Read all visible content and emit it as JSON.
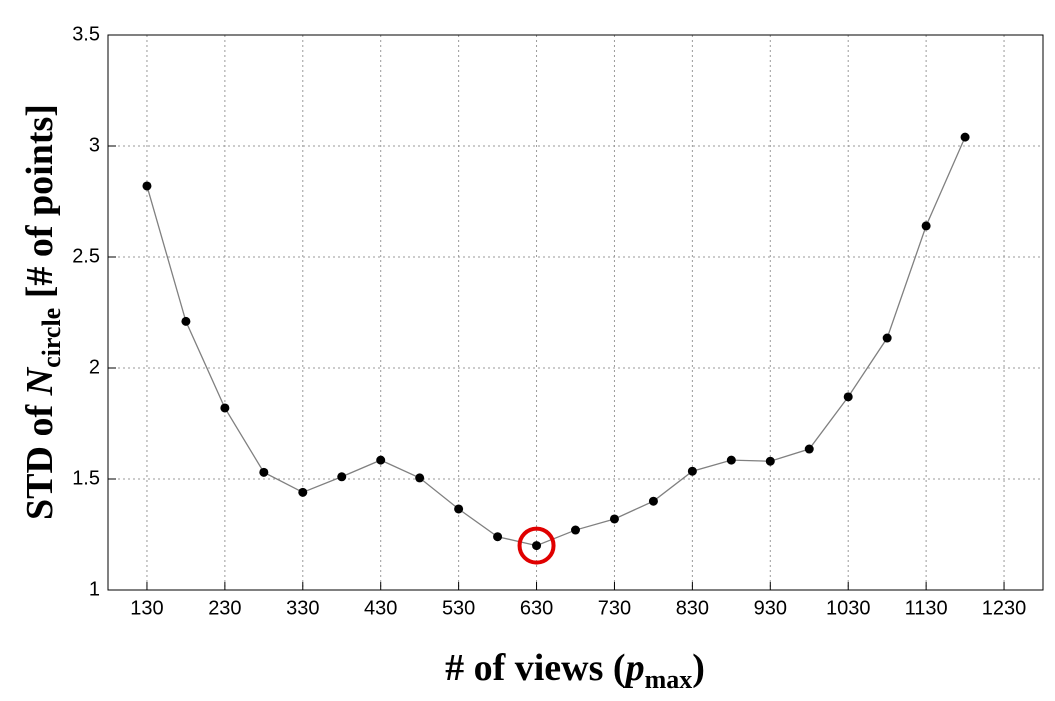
{
  "chart_data": {
    "type": "line",
    "x_label": {
      "text": "# of views (",
      "var": "p",
      "sub": "max",
      "close": ")"
    },
    "y_label": {
      "text": "STD of ",
      "var": "N",
      "sub": "circle",
      "close": " [# of points]"
    },
    "x": [
      130,
      180,
      230,
      280,
      330,
      380,
      430,
      480,
      530,
      580,
      630,
      680,
      730,
      780,
      830,
      880,
      930,
      980,
      1030,
      1080,
      1130,
      1180
    ],
    "series": [
      {
        "color": "#808080",
        "marker_color": "#000000",
        "values": [
          2.82,
          2.21,
          1.82,
          1.53,
          1.44,
          1.51,
          1.585,
          1.505,
          1.365,
          1.24,
          1.2,
          1.27,
          1.32,
          1.4,
          1.535,
          1.585,
          1.58,
          1.635,
          1.87,
          2.135,
          2.64,
          3.04
        ]
      }
    ],
    "xlim": [
      80,
      1280
    ],
    "xticks": [
      130,
      230,
      330,
      430,
      530,
      630,
      730,
      830,
      930,
      1030,
      1130,
      1230
    ],
    "ylim": [
      1,
      3.5
    ],
    "yticks": [
      1,
      1.5,
      2,
      2.5,
      3,
      3.5
    ],
    "grid": true,
    "highlight": {
      "x": 630,
      "color": "#e00000"
    }
  }
}
